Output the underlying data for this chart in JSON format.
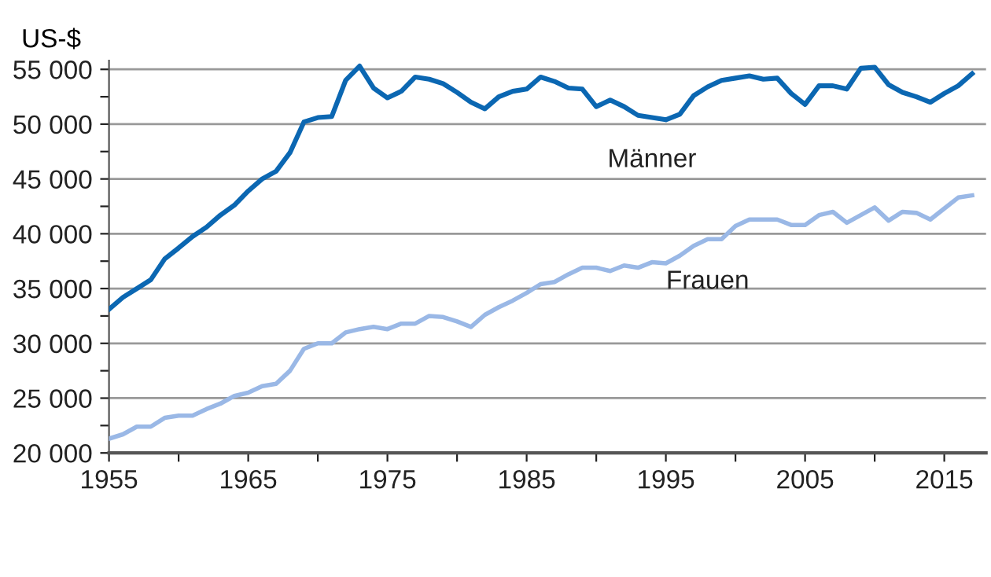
{
  "chart_data": {
    "type": "line",
    "ylabel": "US-$",
    "xlim": [
      1955,
      2018
    ],
    "xticks": [
      1955,
      {
        "value": 1960,
        "label": null
      },
      1965,
      {
        "value": 1970,
        "label": null
      },
      1975,
      {
        "value": 1980,
        "label": null
      },
      1985,
      {
        "value": 1990,
        "label": null
      },
      1995,
      {
        "value": 2000,
        "label": null
      },
      2005,
      {
        "value": 2010,
        "label": null
      },
      2015
    ],
    "ylim": [
      20000,
      55800
    ],
    "yticks": [
      {
        "value": 20000,
        "label": "20 000"
      },
      {
        "value": 22500,
        "label": null
      },
      {
        "value": 25000,
        "label": "25 000"
      },
      {
        "value": 27500,
        "label": null
      },
      {
        "value": 30000,
        "label": "30 000"
      },
      {
        "value": 32500,
        "label": null
      },
      {
        "value": 35000,
        "label": "35 000"
      },
      {
        "value": 37500,
        "label": null
      },
      {
        "value": 40000,
        "label": "40 000"
      },
      {
        "value": 42500,
        "label": null
      },
      {
        "value": 45000,
        "label": "45 000"
      },
      {
        "value": 47500,
        "label": null
      },
      {
        "value": 50000,
        "label": "50 000"
      },
      {
        "value": 52500,
        "label": null
      },
      {
        "value": 55000,
        "label": "55 000"
      }
    ],
    "grid": "y",
    "legend": false,
    "marker": "none",
    "line_style": "solid",
    "x": [
      1955,
      1956,
      1957,
      1958,
      1959,
      1960,
      1961,
      1962,
      1963,
      1964,
      1965,
      1966,
      1967,
      1968,
      1969,
      1970,
      1971,
      1972,
      1973,
      1974,
      1975,
      1976,
      1977,
      1978,
      1979,
      1980,
      1981,
      1982,
      1983,
      1984,
      1985,
      1986,
      1987,
      1988,
      1989,
      1990,
      1991,
      1992,
      1993,
      1994,
      1995,
      1996,
      1997,
      1998,
      1999,
      2000,
      2001,
      2002,
      2003,
      2004,
      2005,
      2006,
      2007,
      2008,
      2009,
      2010,
      2011,
      2012,
      2013,
      2014,
      2015,
      2016,
      2017
    ],
    "series": [
      {
        "name": "Männer",
        "color": "#0b67b2",
        "values": [
          33100,
          34200,
          35000,
          35800,
          37700,
          38700,
          39750,
          40600,
          41700,
          42600,
          43900,
          45000,
          45700,
          47400,
          50200,
          50600,
          50700,
          54000,
          55300,
          53300,
          52400,
          53000,
          54300,
          54100,
          53700,
          52900,
          52000,
          51400,
          52500,
          53000,
          53200,
          54300,
          53900,
          53300,
          53200,
          51600,
          52200,
          51600,
          50800,
          50600,
          50400,
          50900,
          52600,
          53400,
          54000,
          54200,
          54400,
          54100,
          54200,
          52800,
          51800,
          53500,
          53500,
          53200,
          55100,
          55200,
          53600,
          52900,
          52500,
          52000,
          52800,
          53500,
          54600
        ]
      },
      {
        "name": "Frauen",
        "color": "#9ab8e6",
        "values": [
          21300,
          21700,
          22400,
          22400,
          23200,
          23400,
          23400,
          24000,
          24500,
          25200,
          25500,
          26100,
          26300,
          27500,
          29500,
          30000,
          30000,
          31000,
          31300,
          31500,
          31300,
          31800,
          31800,
          32500,
          32400,
          32000,
          31500,
          32600,
          33300,
          33900,
          34600,
          35400,
          35600,
          36300,
          36900,
          36900,
          36600,
          37100,
          36900,
          37400,
          37300,
          38000,
          38900,
          39500,
          39500,
          40700,
          41300,
          41300,
          41300,
          40800,
          40800,
          41700,
          42000,
          41000,
          41700,
          42400,
          41200,
          42000,
          41900,
          41300,
          42300,
          43300,
          43500
        ]
      }
    ]
  }
}
